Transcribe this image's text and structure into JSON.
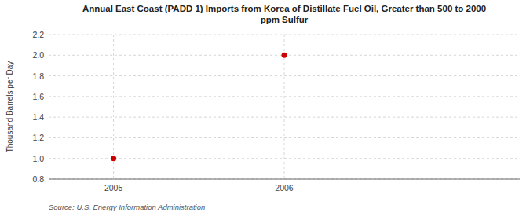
{
  "chart_data": {
    "type": "scatter",
    "title": "Annual East Coast (PADD 1) Imports from Korea of Distillate Fuel Oil, Greater than 500 to 2000\nppm Sulfur",
    "y_label": "Thousand Barrels per Day",
    "annotations": [
      "Source: U.S. Energy Information Administration"
    ],
    "x": [
      2005,
      2006
    ],
    "values": [
      1.0,
      2.0
    ],
    "color": "#cc0000",
    "marker": "circle",
    "xlim": [
      2004.62,
      2007.38
    ],
    "ylim": [
      0.8,
      2.2
    ],
    "xticks": [
      2005,
      2006
    ],
    "yticks": [
      0.8,
      {
        "value": 1.0,
        "label": "1.0"
      },
      1.2,
      1.4,
      1.6,
      1.8,
      {
        "value": 2.0,
        "label": "2.0"
      },
      2.2
    ],
    "grid": true
  }
}
